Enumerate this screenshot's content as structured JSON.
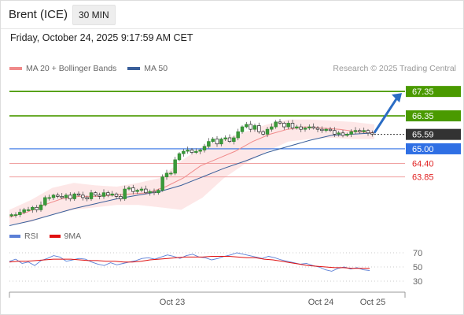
{
  "header": {
    "instrument": "Brent (ICE)",
    "interval": "30 MIN",
    "timestamp": "Friday, October 24, 2025 9:17:59 AM CET"
  },
  "legend": {
    "ma20_label": "MA 20 + Bollinger Bands",
    "ma20_color": "#f08a8a",
    "ma50_label": "MA 50",
    "ma50_color": "#3a5f9a",
    "credit": "Research © 2025 Trading Central"
  },
  "rsi_legend": {
    "rsi_label": "RSI",
    "rsi_color": "#5b7fd6",
    "ma_label": "9MA",
    "ma_color": "#e01010"
  },
  "chart_data": [
    {
      "type": "candlestick",
      "x_ticks": [
        "Oct 23",
        "Oct 24",
        "Oct 25"
      ],
      "price_range": [
        61.9,
        68.0
      ],
      "levels": [
        {
          "value": 67.35,
          "label": "67.35",
          "color": "#4a9a00",
          "style": "target"
        },
        {
          "value": 66.35,
          "label": "66.35",
          "color": "#4a9a00",
          "style": "resistance"
        },
        {
          "value": 65.59,
          "label": "65.59",
          "color": "#333333",
          "style": "last"
        },
        {
          "value": 65.0,
          "label": "65.00",
          "color": "#2f6fe4",
          "style": "pivot"
        },
        {
          "value": 64.4,
          "label": "64.40",
          "color": "#e02020",
          "style": "support"
        },
        {
          "value": 63.85,
          "label": "63.85",
          "color": "#e02020",
          "style": "support"
        }
      ],
      "trend_arrow": {
        "from": 65.59,
        "to": 67.35,
        "direction": "up",
        "color": "#2a6cc4"
      },
      "close_path": [
        62.3,
        62.3,
        62.4,
        62.5,
        62.5,
        62.6,
        62.5,
        62.7,
        63.0,
        63.0,
        63.1,
        63.05,
        63.0,
        63.1,
        62.95,
        63.15,
        63.1,
        63.0,
        62.95,
        63.2,
        63.1,
        63.05,
        63.2,
        63.1,
        63.15,
        63.05,
        62.95,
        63.35,
        63.4,
        63.25,
        63.3,
        63.35,
        63.2,
        63.25,
        63.2,
        63.3,
        63.85,
        64.0,
        64.0,
        64.55,
        64.8,
        64.9,
        64.95,
        64.85,
        64.9,
        64.95,
        65.1,
        65.3,
        65.4,
        65.2,
        65.4,
        65.45,
        65.3,
        65.45,
        65.7,
        65.9,
        66.0,
        65.8,
        65.95,
        65.7,
        65.6,
        65.8,
        65.9,
        66.1,
        66.05,
        65.9,
        66.05,
        65.85,
        65.9,
        65.8,
        65.85,
        65.9,
        65.85,
        65.8,
        65.75,
        65.8,
        65.75,
        65.6,
        65.65,
        65.55,
        65.6,
        65.7,
        65.75,
        65.7,
        65.75,
        65.65,
        65.6
      ],
      "ma20": [
        62.2,
        62.4,
        62.7,
        62.95,
        63.05,
        63.05,
        63.1,
        63.15,
        63.2,
        63.45,
        63.8,
        64.3,
        64.6,
        64.9,
        65.3,
        65.6,
        65.8,
        65.9,
        65.85,
        65.8,
        65.7,
        65.65
      ],
      "ma50": [
        61.85,
        62.05,
        62.3,
        62.55,
        62.75,
        62.95,
        63.1,
        63.25,
        63.5,
        63.85,
        64.2,
        64.5,
        64.85,
        65.1,
        65.35,
        65.55,
        65.6,
        65.65
      ],
      "bollinger_upper": [
        62.5,
        62.9,
        63.4,
        63.6,
        63.5,
        63.45,
        63.6,
        63.8,
        64.5,
        65.1,
        65.4,
        65.7,
        66.0,
        66.2,
        66.2,
        66.15,
        66.1,
        66.0
      ],
      "bollinger_lower": [
        61.9,
        62.0,
        62.3,
        62.5,
        62.6,
        62.7,
        62.7,
        62.6,
        62.5,
        63.0,
        63.8,
        64.4,
        64.9,
        65.3,
        65.4,
        65.45,
        65.4,
        65.4
      ]
    },
    {
      "type": "line",
      "name": "RSI",
      "y_range": [
        20,
        80
      ],
      "y_ticks": [
        70,
        50,
        30
      ],
      "rsi": [
        58,
        61,
        55,
        57,
        52,
        59,
        62,
        66,
        64,
        58,
        60,
        62,
        61,
        57,
        54,
        52,
        56,
        53,
        55,
        57,
        59,
        62,
        63,
        61,
        64,
        67,
        65,
        62,
        66,
        68,
        64,
        63,
        60,
        62,
        65,
        67,
        70,
        68,
        66,
        64,
        62,
        65,
        63,
        60,
        58,
        56,
        54,
        55,
        52,
        50,
        46,
        44,
        48,
        50,
        47,
        49,
        46,
        45
      ],
      "ma9": [
        57,
        58,
        58,
        59,
        60,
        61,
        61,
        61,
        60,
        59,
        59,
        58,
        58,
        57,
        57,
        58,
        60,
        61,
        62,
        63,
        64,
        64,
        64,
        65,
        65,
        65,
        64,
        63,
        63,
        61,
        60,
        58,
        56,
        54,
        52,
        51,
        50,
        49,
        49,
        48,
        48,
        48
      ]
    }
  ]
}
